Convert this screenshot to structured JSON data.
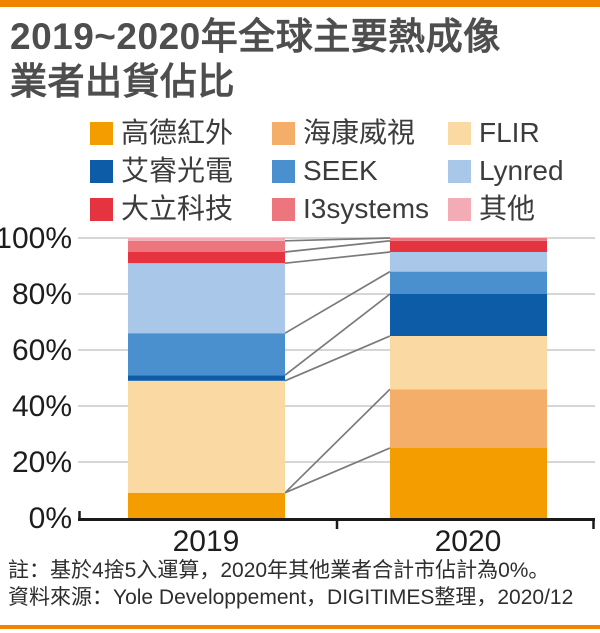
{
  "page": {
    "accent_color": "#F08300",
    "background": "#FFFFFF"
  },
  "header": {
    "title_line1": "2019~2020年全球主要熱成像",
    "title_line2": "業者出貨佔比"
  },
  "chart_data": {
    "type": "bar",
    "variant": "stacked-percent",
    "title": "2019~2020年全球主要熱成像業者出貨佔比",
    "unit": "%",
    "categories": [
      "2019",
      "2020"
    ],
    "series": [
      {
        "key": "guide",
        "name": "高德紅外",
        "color": "#F49D00",
        "values": [
          9,
          25
        ]
      },
      {
        "key": "hikvision",
        "name": "海康威視",
        "color": "#F5AD6A",
        "values": [
          0,
          21
        ]
      },
      {
        "key": "flir",
        "name": "FLIR",
        "color": "#FBD9A2",
        "values": [
          40,
          19
        ]
      },
      {
        "key": "iray",
        "name": "艾睿光電",
        "color": "#0D5CA7",
        "values": [
          2,
          15
        ]
      },
      {
        "key": "seek",
        "name": "SEEK",
        "color": "#4B90CE",
        "values": [
          15,
          8
        ]
      },
      {
        "key": "lynred",
        "name": "Lynred",
        "color": "#A9C7E8",
        "values": [
          25,
          7
        ]
      },
      {
        "key": "dali",
        "name": "大立科技",
        "color": "#E63340",
        "values": [
          4,
          4
        ]
      },
      {
        "key": "i3systems",
        "name": "I3systems",
        "color": "#EC757E",
        "values": [
          4,
          1
        ]
      },
      {
        "key": "others",
        "name": "其他",
        "color": "#F3ACB6",
        "values": [
          1,
          0
        ]
      }
    ],
    "y_ticks": [
      "0%",
      "20%",
      "40%",
      "60%",
      "80%",
      "100%"
    ],
    "ylim": [
      0,
      100
    ],
    "grid": true,
    "legend_position": "top",
    "connector_lines": true
  },
  "footer": {
    "note": "註：基於4捨5入運算，2020年其他業者合計市佔計為0%。",
    "source": "資料來源：Yole Developpement，DIGITIMES整理，2020/12"
  }
}
